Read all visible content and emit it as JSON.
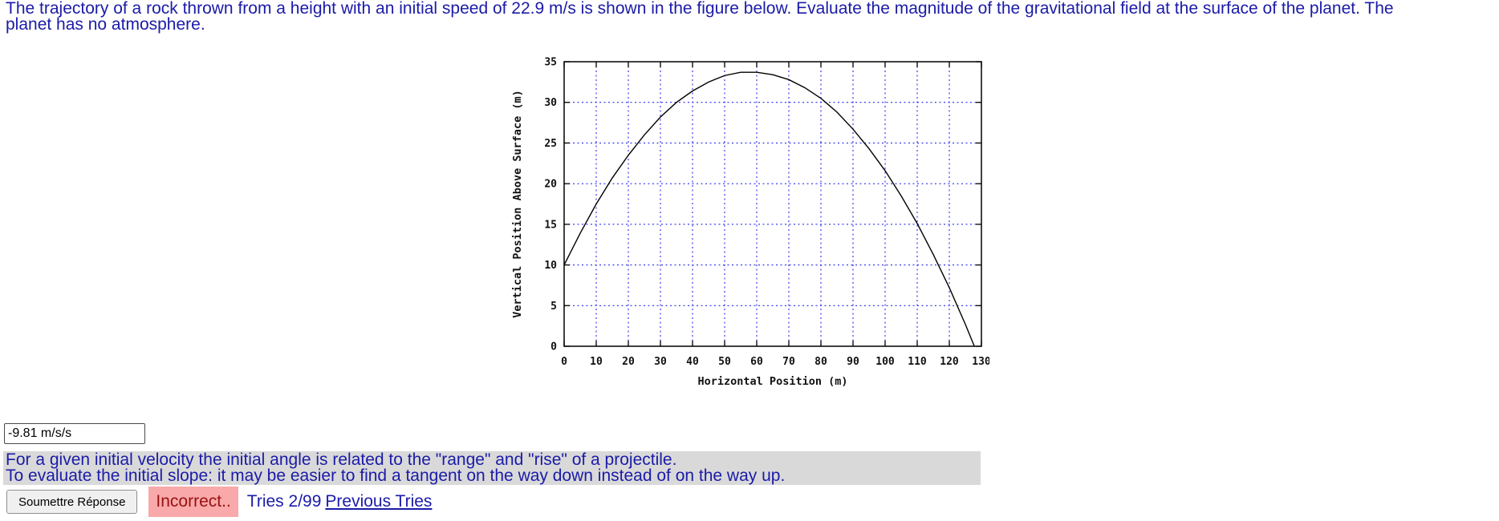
{
  "question": {
    "text": "The trajectory of a rock thrown from a height with an initial speed of 22.9 m/s is shown in the figure below. Evaluate the magnitude of the gravitational field at the surface of the planet. The planet has no atmosphere."
  },
  "answer": {
    "value": "-9.81 m/s/s"
  },
  "hint": {
    "line1": "For a given initial velocity the initial angle is related to the \"range\" and \"rise\" of a projectile.",
    "line2": "To evaluate the initial slope: it may be easier to find a tangent on the way down instead of on the way up."
  },
  "controls": {
    "submit_label": "Soumettre Réponse",
    "status": "Incorrect..",
    "tries": "Tries 2/99",
    "previous_tries": "Previous Tries"
  },
  "colors": {
    "question_text": "#1b1ba8",
    "hint_bg": "#d9d9d9",
    "status_text": "#991111",
    "status_bg": "#f9a9a9",
    "grid_blue": "#2b2bee",
    "curve": "#000000"
  },
  "chart_data": {
    "type": "line",
    "title": "",
    "xlabel": "Horizontal Position (m)",
    "ylabel": "Vertical Position Above Surface (m)",
    "xlim": [
      0,
      130
    ],
    "ylim": [
      0,
      35
    ],
    "xticks": [
      0,
      10,
      20,
      30,
      40,
      50,
      60,
      70,
      80,
      90,
      100,
      110,
      120,
      130
    ],
    "yticks": [
      0,
      5,
      10,
      15,
      20,
      25,
      30,
      35
    ],
    "grid": true,
    "legend_position": "none",
    "grid_color": "#2b2bee",
    "line_color": "#000000",
    "series": [
      {
        "name": "trajectory",
        "x": [
          0,
          5,
          10,
          15,
          20,
          25,
          30,
          35,
          40,
          45,
          50,
          55,
          60,
          65,
          70,
          75,
          80,
          85,
          90,
          95,
          100,
          105,
          110,
          115,
          120,
          125,
          127.8
        ],
        "y": [
          10,
          13.9,
          17.5,
          20.7,
          23.5,
          26.0,
          28.2,
          30.0,
          31.4,
          32.5,
          33.3,
          33.7,
          33.7,
          33.4,
          32.8,
          31.8,
          30.5,
          28.8,
          26.7,
          24.3,
          21.6,
          18.5,
          15.1,
          11.3,
          7.2,
          2.7,
          0
        ]
      }
    ]
  }
}
